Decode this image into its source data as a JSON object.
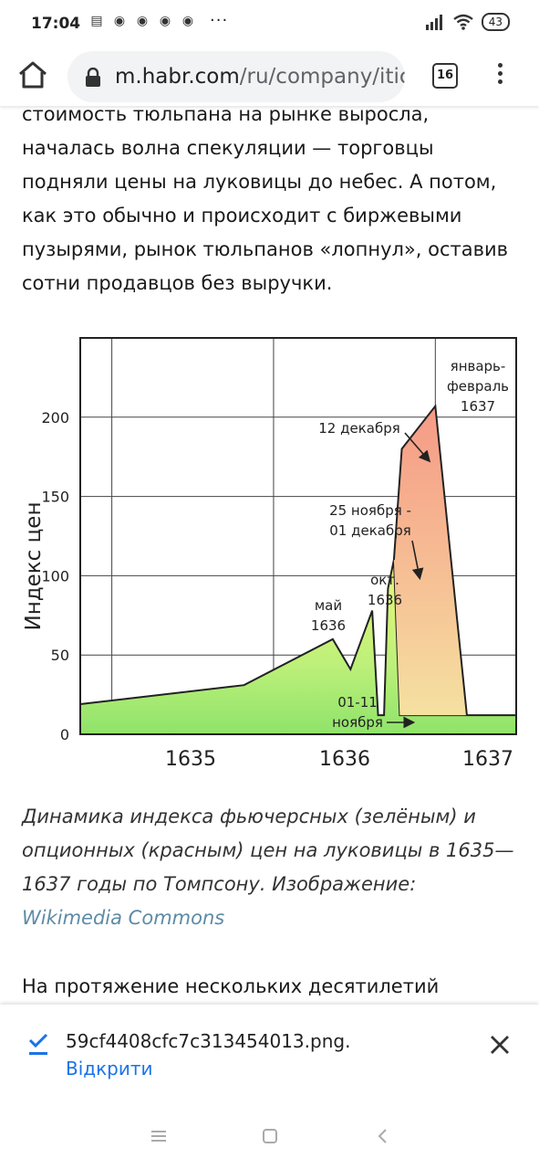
{
  "status_bar": {
    "time": "17:04",
    "notification_icons": [
      "news-icon",
      "discord-icon",
      "discord-icon",
      "discord-icon",
      "discord-icon"
    ],
    "more": "···",
    "battery": "43"
  },
  "toolbar": {
    "url_host": "m.habr.com",
    "url_path": "/ru/company/itic",
    "tabs_count": "16"
  },
  "article": {
    "para1": "стоимость тюльпана на рынке выросла, началась волна спекуляции — торговцы подняли цены на луковицы до небес. А потом, как это обычно и происходит с биржевыми пузырями, рынок тюльпанов «лопнул», оставив сотни продавцов без выручки.",
    "caption_text": "Динамика индекса фьючерсных (зелёным) и опционных (красным) цен на луковицы в 1635—1637 годы по Томпсону. Изображение: ",
    "caption_link": "Wikimedia Commons",
    "para2": "На протяжение нескольких десятилетий"
  },
  "chart_data": {
    "type": "area",
    "ylabel": "Индекс цен",
    "ylim": [
      0,
      250
    ],
    "yticks": [
      "0",
      "50",
      "100",
      "150",
      "200"
    ],
    "xticks": [
      "1635",
      "1636",
      "1637"
    ],
    "series": [
      {
        "color": "#8fe36a",
        "points": [
          [
            1634.72,
            19
          ],
          [
            1635.55,
            31
          ],
          [
            1636.0,
            60
          ],
          [
            1636.09,
            41
          ],
          [
            1636.2,
            78
          ],
          [
            1636.23,
            12
          ],
          [
            1636.26,
            12
          ],
          [
            1636.28,
            92
          ],
          [
            1636.31,
            110
          ],
          [
            1636.34,
            12
          ],
          [
            1636.93,
            12
          ]
        ]
      },
      {
        "color": "#f59a86",
        "points": [
          [
            1636.31,
            110
          ],
          [
            1636.35,
            180
          ],
          [
            1636.52,
            207
          ],
          [
            1636.68,
            12
          ],
          [
            1636.34,
            12
          ]
        ]
      }
    ],
    "annotations": [
      {
        "text": "январь-\nфевраль\n1637"
      },
      {
        "text": "12 декабря"
      },
      {
        "text": "25 ноября -\n01 декабря"
      },
      {
        "text": "окт.\n1636"
      },
      {
        "text": "май\n1636"
      },
      {
        "text": "01-11\nноября"
      }
    ]
  },
  "download": {
    "file_name": "59cf4408cfc7c313454013.png.",
    "open_label": "Відкрити"
  },
  "colors": {
    "link": "#5d8ba6",
    "accent": "#1a73e8",
    "green": "#8fe36a",
    "red": "#f59a86"
  }
}
